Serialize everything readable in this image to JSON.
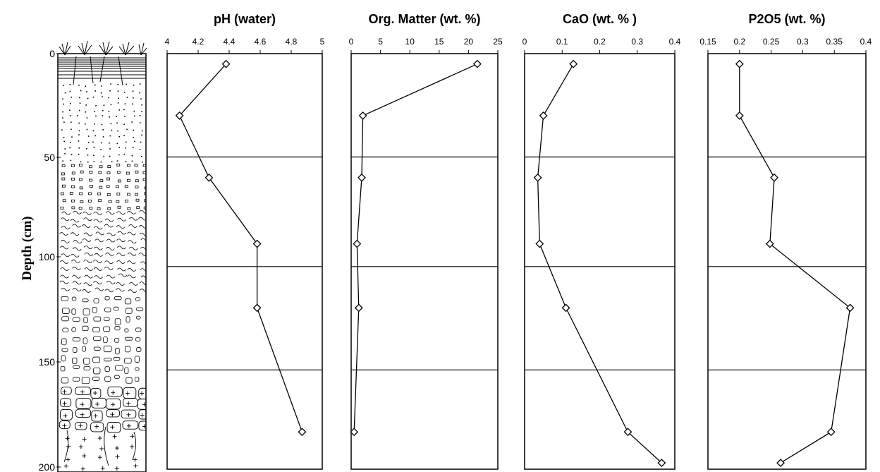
{
  "chart_data": {
    "type": "line",
    "ylabel": "Depth (cm)",
    "depth_axis": {
      "range": [
        0,
        200
      ],
      "ticks": [
        0,
        50,
        100,
        150,
        200
      ]
    },
    "horizon_boundaries_cm": [
      50,
      103,
      153
    ],
    "panels": [
      {
        "title": "pH (water)",
        "xlim": [
          4,
          5
        ],
        "xticks": [
          "4",
          "4.2",
          "4.4",
          "4.6",
          "4.8",
          "5"
        ],
        "points": [
          {
            "x": 4.38,
            "depth": 5
          },
          {
            "x": 4.08,
            "depth": 30
          },
          {
            "x": 4.27,
            "depth": 60
          },
          {
            "x": 4.58,
            "depth": 92
          },
          {
            "x": 4.58,
            "depth": 123
          },
          {
            "x": 4.87,
            "depth": 183
          }
        ]
      },
      {
        "title": "Org. Matter (wt. %)",
        "xlim": [
          0,
          25
        ],
        "xticks": [
          "0",
          "5",
          "10",
          "15",
          "20",
          "25"
        ],
        "points": [
          {
            "x": 21.5,
            "depth": 5
          },
          {
            "x": 2.0,
            "depth": 30
          },
          {
            "x": 1.8,
            "depth": 60
          },
          {
            "x": 1.0,
            "depth": 92
          },
          {
            "x": 1.3,
            "depth": 123
          },
          {
            "x": 0.5,
            "depth": 183
          }
        ]
      },
      {
        "title": "CaO (wt. % )",
        "xlim": [
          0,
          0.4
        ],
        "xticks": [
          "0",
          "0.1",
          "0.2",
          "0.3",
          "0.4"
        ],
        "points": [
          {
            "x": 0.13,
            "depth": 5
          },
          {
            "x": 0.05,
            "depth": 30
          },
          {
            "x": 0.035,
            "depth": 60
          },
          {
            "x": 0.04,
            "depth": 92
          },
          {
            "x": 0.11,
            "depth": 123
          },
          {
            "x": 0.275,
            "depth": 183
          },
          {
            "x": 0.365,
            "depth": 198
          }
        ]
      },
      {
        "title": "P2O5 (wt. %)",
        "xlim": [
          0.15,
          0.4
        ],
        "xticks": [
          "0.15",
          "0.2",
          "0.25",
          "0.3",
          "0.35",
          "0.4"
        ],
        "points": [
          {
            "x": 0.2,
            "depth": 5
          },
          {
            "x": 0.2,
            "depth": 30
          },
          {
            "x": 0.255,
            "depth": 60
          },
          {
            "x": 0.248,
            "depth": 92
          },
          {
            "x": 0.375,
            "depth": 123
          },
          {
            "x": 0.345,
            "depth": 183
          },
          {
            "x": 0.265,
            "depth": 198
          }
        ]
      }
    ]
  }
}
